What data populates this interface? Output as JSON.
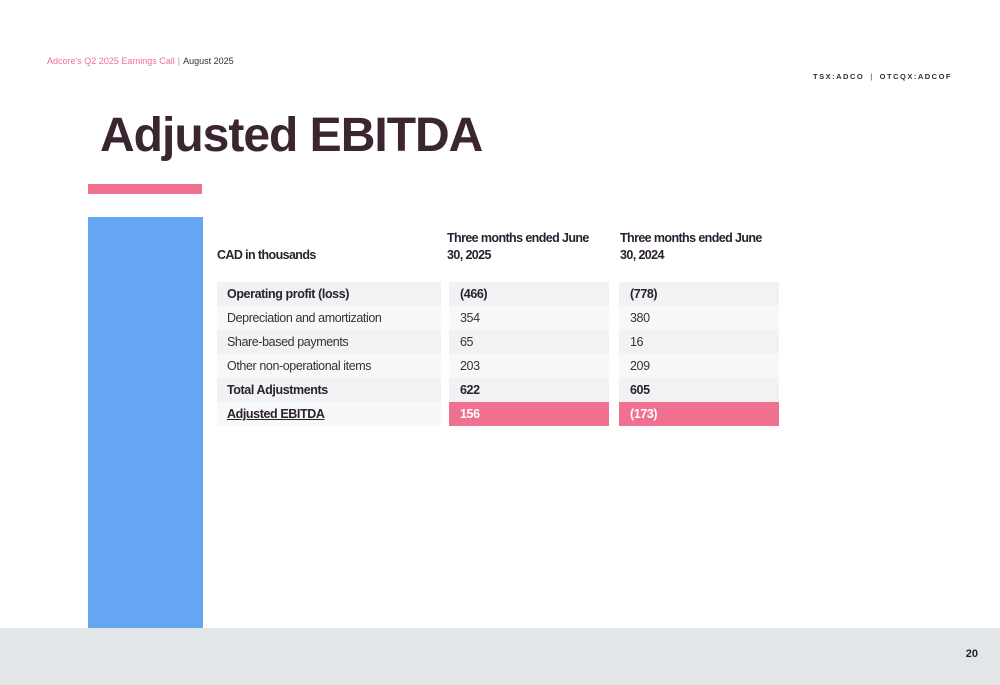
{
  "header": {
    "event": "Adcore's Q2 2025 Earnings Call",
    "separator": "|",
    "date": "August 2025",
    "tickers": [
      "TSX:ADCO",
      "OTCQX:ADCOF"
    ],
    "ticker_divider": "|"
  },
  "title": "Adjusted EBITDA",
  "table": {
    "headers": [
      "CAD in thousands",
      "Three months ended June 30, 2025",
      "Three months ended June 30, 2024"
    ],
    "rows": [
      {
        "label": "Operating profit (loss)",
        "v2025": "(466)",
        "v2024": "(778)"
      },
      {
        "label": "Depreciation and amortization",
        "v2025": "354",
        "v2024": "380"
      },
      {
        "label": "Share-based payments",
        "v2025": "65",
        "v2024": "16"
      },
      {
        "label": "Other non-operational items",
        "v2025": "203",
        "v2024": "209"
      },
      {
        "label": "Total Adjustments",
        "v2025": "622",
        "v2024": "605"
      },
      {
        "label": "Adjusted EBITDA",
        "v2025": "156",
        "v2024": "(173)"
      }
    ]
  },
  "colors": {
    "accent_pink": "#f07090",
    "panel_blue": "#64a6f2",
    "title_dark": "#3a2530",
    "footer_gray": "#e2e6e9"
  },
  "footer": {
    "page_number": "20"
  }
}
